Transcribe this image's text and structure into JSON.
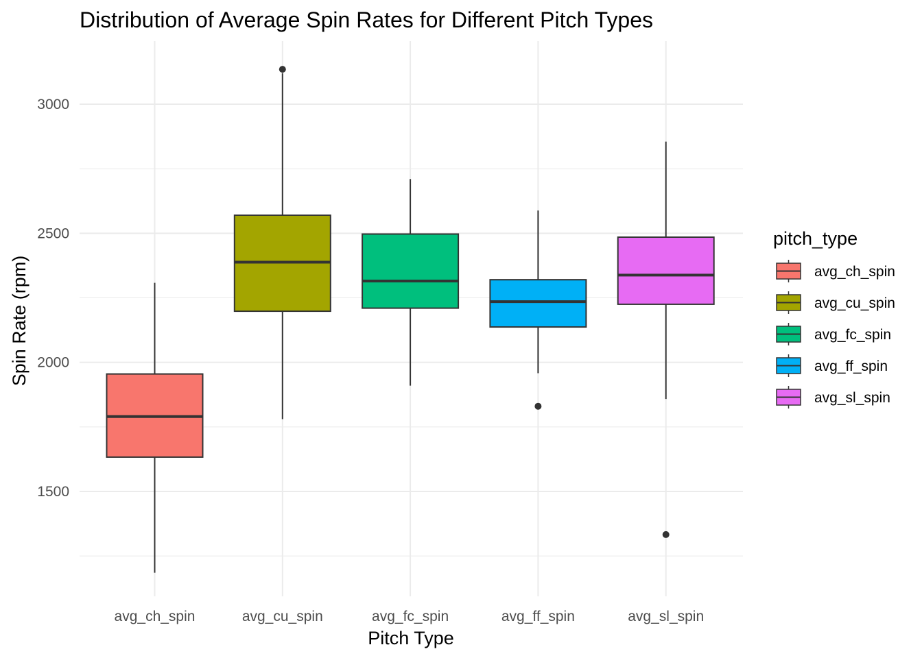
{
  "chart_data": {
    "type": "boxplot",
    "title": "Distribution of Average Spin Rates for Different Pitch Types",
    "xlabel": "Pitch Type",
    "ylabel": "Spin Rate (rpm)",
    "ylim": [
      1100,
      3300
    ],
    "yticks": [
      1500,
      2000,
      2500,
      3000
    ],
    "y_minor_ticks": [
      1250,
      1750,
      2250,
      2750,
      3250
    ],
    "grid": true,
    "legend": {
      "title": "pitch_type",
      "position": "right"
    },
    "categories": [
      "avg_ch_spin",
      "avg_cu_spin",
      "avg_fc_spin",
      "avg_ff_spin",
      "avg_sl_spin"
    ],
    "boxes": [
      {
        "name": "avg_ch_spin",
        "color": "#F8766D",
        "whisker_low": 1185,
        "q1": 1633,
        "median": 1790,
        "q3": 1955,
        "whisker_high": 2308,
        "outliers": []
      },
      {
        "name": "avg_cu_spin",
        "color": "#A3A500",
        "whisker_low": 1780,
        "q1": 2198,
        "median": 2388,
        "q3": 2570,
        "whisker_high": 3120,
        "outliers": [
          3135
        ]
      },
      {
        "name": "avg_fc_spin",
        "color": "#00BF7D",
        "whisker_low": 1910,
        "q1": 2210,
        "median": 2315,
        "q3": 2497,
        "whisker_high": 2710,
        "outliers": []
      },
      {
        "name": "avg_ff_spin",
        "color": "#00B0F6",
        "whisker_low": 1958,
        "q1": 2137,
        "median": 2235,
        "q3": 2320,
        "whisker_high": 2588,
        "outliers": [
          1830
        ]
      },
      {
        "name": "avg_sl_spin",
        "color": "#E76BF3",
        "whisker_low": 1858,
        "q1": 2225,
        "median": 2338,
        "q3": 2485,
        "whisker_high": 2855,
        "outliers": [
          1333
        ]
      }
    ]
  }
}
